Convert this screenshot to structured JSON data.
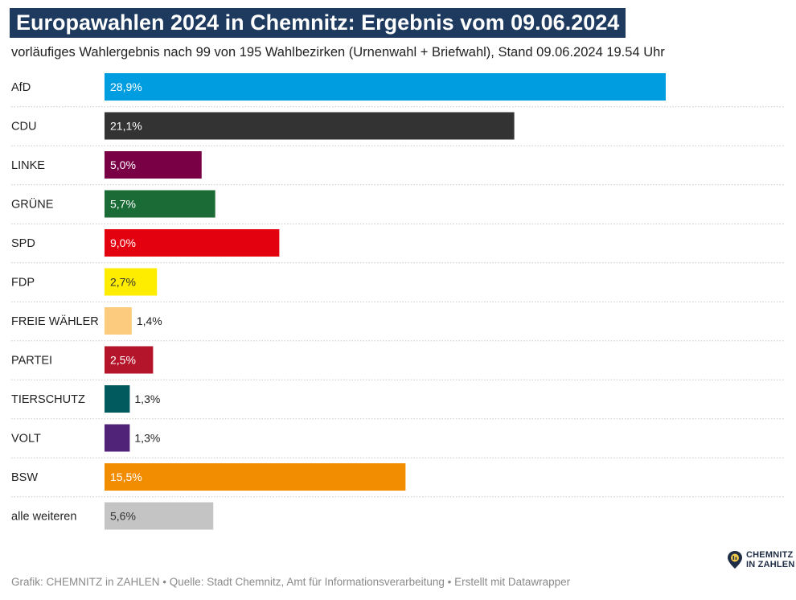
{
  "title": "Europawahlen 2024 in Chemnitz: Ergebnis vom 09.06.2024",
  "subtitle": "vorläufiges Wahlergebnis nach 99 von 195 Wahlbezirken (Urnenwahl + Briefwahl), Stand 09.06.2024 19.54 Uhr",
  "footer": "Grafik: CHEMNITZ in ZAHLEN • Quelle: Stadt Chemnitz, Amt für Informationsverarbeitung • Erstellt mit Datawrapper",
  "logo": {
    "line1": "CHEMNITZ",
    "line2": "IN ZAHLEN"
  },
  "chart_data": {
    "type": "bar",
    "orientation": "horizontal",
    "unit": "%",
    "xlim": [
      0,
      30
    ],
    "grid": false,
    "categories": [
      "AfD",
      "CDU",
      "LINKE",
      "GRÜNE",
      "SPD",
      "FDP",
      "FREIE WÄHLER",
      "PARTEI",
      "TIERSCHUTZ",
      "VOLT",
      "BSW",
      "alle weiteren"
    ],
    "values": [
      28.9,
      21.1,
      5.0,
      5.7,
      9.0,
      2.7,
      1.4,
      2.5,
      1.3,
      1.3,
      15.5,
      5.6
    ],
    "value_labels": [
      "28,9%",
      "21,1%",
      "5,0%",
      "5,7%",
      "9,0%",
      "2,7%",
      "1,4%",
      "2,5%",
      "1,3%",
      "1,3%",
      "15,5%",
      "5,6%"
    ],
    "colors": [
      "#009ee0",
      "#333333",
      "#7a0046",
      "#1a6b35",
      "#e3000f",
      "#ffed00",
      "#fdcb7e",
      "#b5152b",
      "#005a5e",
      "#502379",
      "#f28c00",
      "#c4c4c4"
    ],
    "label_colors": [
      "#ffffff",
      "#ffffff",
      "#ffffff",
      "#ffffff",
      "#ffffff",
      "#333333",
      "#222222",
      "#ffffff",
      "#222222",
      "#222222",
      "#ffffff",
      "#333333"
    ],
    "label_inside": [
      true,
      true,
      true,
      true,
      true,
      true,
      false,
      true,
      false,
      false,
      true,
      true
    ]
  }
}
